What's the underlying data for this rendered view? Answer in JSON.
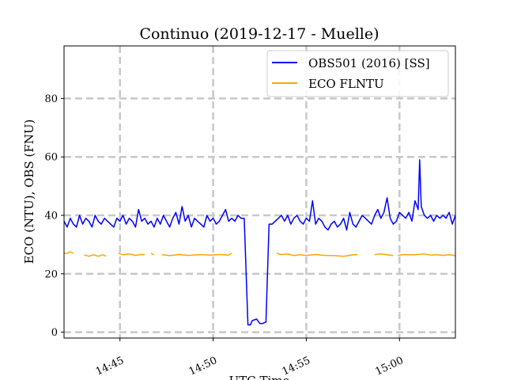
{
  "chart_data": {
    "type": "line",
    "title": "Continuo (2019-12-17 - Muelle)",
    "xlabel": "UTC Time",
    "ylabel": "ECO (NTU), OBS (FNU)",
    "xlim": [
      "14:42",
      "15:03"
    ],
    "ylim": [
      -2,
      98
    ],
    "xticks": [
      "14:45",
      "14:50",
      "14:55",
      "15:00"
    ],
    "yticks": [
      0,
      20,
      40,
      60,
      80
    ],
    "grid": true,
    "legend_position": "top-right",
    "series": [
      {
        "name": "OBS501 (2016) [SS]",
        "color": "#0000ff",
        "points": [
          [
            "14:42:00",
            38
          ],
          [
            "14:42:10",
            36
          ],
          [
            "14:42:20",
            39
          ],
          [
            "14:42:30",
            37
          ],
          [
            "14:42:40",
            36
          ],
          [
            "14:42:50",
            40
          ],
          [
            "14:43:00",
            37
          ],
          [
            "14:43:10",
            39
          ],
          [
            "14:43:20",
            38
          ],
          [
            "14:43:30",
            36
          ],
          [
            "14:43:40",
            40
          ],
          [
            "14:43:50",
            38
          ],
          [
            "14:44:00",
            37
          ],
          [
            "14:44:10",
            39
          ],
          [
            "14:44:20",
            38
          ],
          [
            "14:44:30",
            37
          ],
          [
            "14:44:40",
            36
          ],
          [
            "14:44:50",
            39
          ],
          [
            "14:45:00",
            38
          ],
          [
            "14:45:10",
            40
          ],
          [
            "14:45:20",
            37
          ],
          [
            "14:45:30",
            39
          ],
          [
            "14:45:40",
            38
          ],
          [
            "14:45:50",
            36
          ],
          [
            "14:46:00",
            42
          ],
          [
            "14:46:10",
            38
          ],
          [
            "14:46:20",
            39
          ],
          [
            "14:46:30",
            37
          ],
          [
            "14:46:40",
            38
          ],
          [
            "14:46:50",
            36
          ],
          [
            "14:47:00",
            39
          ],
          [
            "14:47:10",
            37
          ],
          [
            "14:47:20",
            40
          ],
          [
            "14:47:30",
            38
          ],
          [
            "14:47:40",
            36
          ],
          [
            "14:47:50",
            39
          ],
          [
            "14:48:00",
            41
          ],
          [
            "14:48:10",
            37
          ],
          [
            "14:48:20",
            43
          ],
          [
            "14:48:30",
            38
          ],
          [
            "14:48:40",
            40
          ],
          [
            "14:48:50",
            36
          ],
          [
            "14:49:00",
            39
          ],
          [
            "14:49:10",
            38
          ],
          [
            "14:49:20",
            37
          ],
          [
            "14:49:30",
            36
          ],
          [
            "14:49:40",
            40
          ],
          [
            "14:49:50",
            38
          ],
          [
            "14:50:00",
            39
          ],
          [
            "14:50:10",
            37
          ],
          [
            "14:50:20",
            38
          ],
          [
            "14:50:30",
            40
          ],
          [
            "14:50:40",
            42
          ],
          [
            "14:50:50",
            38
          ],
          [
            "14:51:00",
            39
          ],
          [
            "14:51:10",
            38
          ],
          [
            "14:51:20",
            40
          ],
          [
            "14:51:30",
            39
          ],
          [
            "14:51:40",
            39
          ],
          [
            "14:51:52",
            2.5
          ],
          [
            "14:52:00",
            2.5
          ],
          [
            "14:52:06",
            4
          ],
          [
            "14:52:20",
            4.5
          ],
          [
            "14:52:30",
            3
          ],
          [
            "14:52:40",
            3
          ],
          [
            "14:52:50",
            3.5
          ],
          [
            "14:53:00",
            37
          ],
          [
            "14:53:10",
            37
          ],
          [
            "14:53:20",
            38
          ],
          [
            "14:53:30",
            39
          ],
          [
            "14:53:40",
            40
          ],
          [
            "14:53:50",
            38
          ],
          [
            "14:54:00",
            40
          ],
          [
            "14:54:10",
            37
          ],
          [
            "14:54:20",
            39
          ],
          [
            "14:54:30",
            40
          ],
          [
            "14:54:40",
            38
          ],
          [
            "14:54:50",
            37
          ],
          [
            "14:55:00",
            39
          ],
          [
            "14:55:10",
            38
          ],
          [
            "14:55:20",
            45
          ],
          [
            "14:55:30",
            37
          ],
          [
            "14:55:40",
            39
          ],
          [
            "14:55:50",
            38
          ],
          [
            "14:56:00",
            36
          ],
          [
            "14:56:10",
            35
          ],
          [
            "14:56:20",
            37
          ],
          [
            "14:56:30",
            38
          ],
          [
            "14:56:40",
            36
          ],
          [
            "14:56:50",
            37
          ],
          [
            "14:57:00",
            39
          ],
          [
            "14:57:10",
            35
          ],
          [
            "14:57:20",
            41
          ],
          [
            "14:57:30",
            37
          ],
          [
            "14:57:40",
            36
          ],
          [
            "14:57:50",
            38
          ],
          [
            "14:58:00",
            40
          ],
          [
            "14:58:10",
            39
          ],
          [
            "14:58:20",
            38
          ],
          [
            "14:58:30",
            37
          ],
          [
            "14:58:40",
            40
          ],
          [
            "14:58:50",
            42
          ],
          [
            "14:59:00",
            39
          ],
          [
            "14:59:10",
            41
          ],
          [
            "14:59:20",
            46
          ],
          [
            "14:59:30",
            39
          ],
          [
            "14:59:40",
            37
          ],
          [
            "14:59:50",
            38
          ],
          [
            "15:00:00",
            41
          ],
          [
            "15:00:10",
            40
          ],
          [
            "15:00:20",
            39
          ],
          [
            "15:00:30",
            41
          ],
          [
            "15:00:40",
            38
          ],
          [
            "15:00:50",
            45
          ],
          [
            "15:01:00",
            42
          ],
          [
            "15:01:05",
            59
          ],
          [
            "15:01:10",
            43
          ],
          [
            "15:01:20",
            40
          ],
          [
            "15:01:30",
            39
          ],
          [
            "15:01:40",
            40
          ],
          [
            "15:01:50",
            38
          ],
          [
            "15:02:00",
            40
          ],
          [
            "15:02:10",
            39
          ],
          [
            "15:02:20",
            40
          ],
          [
            "15:02:30",
            39
          ],
          [
            "15:02:40",
            41
          ],
          [
            "15:02:50",
            37
          ],
          [
            "15:03:00",
            40
          ]
        ]
      },
      {
        "name": "ECO FLNTU",
        "color": "#ffa500",
        "segments": [
          [
            [
              "14:42:00",
              27
            ],
            [
              "14:42:10",
              27
            ],
            [
              "14:42:20",
              27.5
            ],
            [
              "14:42:30",
              27
            ]
          ],
          [
            [
              "14:43:05",
              26.5
            ],
            [
              "14:43:20",
              26
            ],
            [
              "14:43:35",
              26.5
            ],
            [
              "14:43:50",
              26
            ],
            [
              "14:44:05",
              26.5
            ],
            [
              "14:44:15",
              26
            ]
          ],
          [
            [
              "14:44:55",
              27
            ],
            [
              "14:45:10",
              26.5
            ],
            [
              "14:45:30",
              26.8
            ],
            [
              "14:45:50",
              26.3
            ],
            [
              "14:46:05",
              26.6
            ],
            [
              "14:46:20",
              26.5
            ]
          ],
          [
            [
              "14:46:40",
              27
            ],
            [
              "14:46:50",
              26.5
            ]
          ],
          [
            [
              "14:47:15",
              26.5
            ],
            [
              "14:47:40",
              26.2
            ],
            [
              "14:48:10",
              26.6
            ],
            [
              "14:48:40",
              26.3
            ],
            [
              "14:49:20",
              26.6
            ],
            [
              "14:49:50",
              26.4
            ],
            [
              "14:50:20",
              26.6
            ],
            [
              "14:50:50",
              26.4
            ],
            [
              "14:51:00",
              27
            ]
          ],
          [
            [
              "14:53:25",
              27
            ],
            [
              "14:53:40",
              26.5
            ],
            [
              "14:54:00",
              26.8
            ],
            [
              "14:54:20",
              26.2
            ],
            [
              "14:54:40",
              26.5
            ],
            [
              "14:55:00",
              26.3
            ],
            [
              "14:55:30",
              26.6
            ],
            [
              "14:56:00",
              26.3
            ],
            [
              "14:56:30",
              26.2
            ],
            [
              "14:57:00",
              26
            ],
            [
              "14:57:30",
              26.5
            ],
            [
              "14:57:45",
              26.5
            ]
          ],
          [
            [
              "14:58:40",
              26.5
            ],
            [
              "14:59:00",
              26.8
            ],
            [
              "14:59:20",
              26.5
            ],
            [
              "14:59:40",
              26.2
            ]
          ],
          [
            [
              "14:59:55",
              26.3
            ],
            [
              "15:00:15",
              26.6
            ],
            [
              "15:00:40",
              26.5
            ],
            [
              "15:01:00",
              26.6
            ],
            [
              "15:01:20",
              26.8
            ],
            [
              "15:01:40",
              26.4
            ],
            [
              "15:02:00",
              26.5
            ],
            [
              "15:02:20",
              26.3
            ],
            [
              "15:02:40",
              26.5
            ],
            [
              "15:03:00",
              26.2
            ]
          ]
        ]
      }
    ]
  }
}
